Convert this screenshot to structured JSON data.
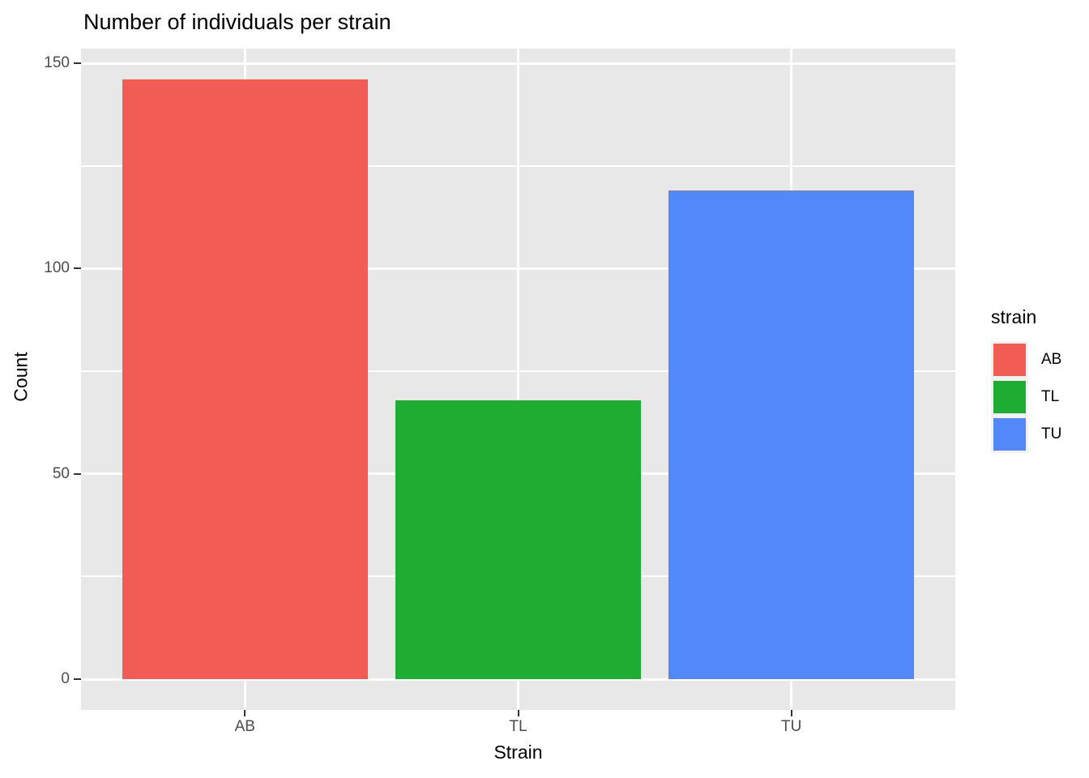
{
  "chart_data": {
    "type": "bar",
    "title": "Number of individuals per strain",
    "xlabel": "Strain",
    "ylabel": "Count",
    "categories": [
      "AB",
      "TL",
      "TU"
    ],
    "values": [
      146,
      68,
      119
    ],
    "bar_colors": [
      "#F15C55",
      "#1EAD32",
      "#5388FA"
    ],
    "yticks": [
      0,
      50,
      100,
      150
    ],
    "yticks_minor": [
      25,
      75,
      125
    ],
    "ylim": [
      -7.5,
      153.6
    ],
    "grid": "white major and minor horizontal lines, white vertical line at each category center",
    "panel_bg": "#E8E8E8",
    "tick_label_color": "#4D4D4D",
    "legend": {
      "title": "strain",
      "position": "right",
      "key_bg": "#F2F2F2",
      "entries": [
        {
          "label": "AB",
          "color": "#F15C55"
        },
        {
          "label": "TL",
          "color": "#1EAD32"
        },
        {
          "label": "TU",
          "color": "#5388FA"
        }
      ]
    }
  }
}
